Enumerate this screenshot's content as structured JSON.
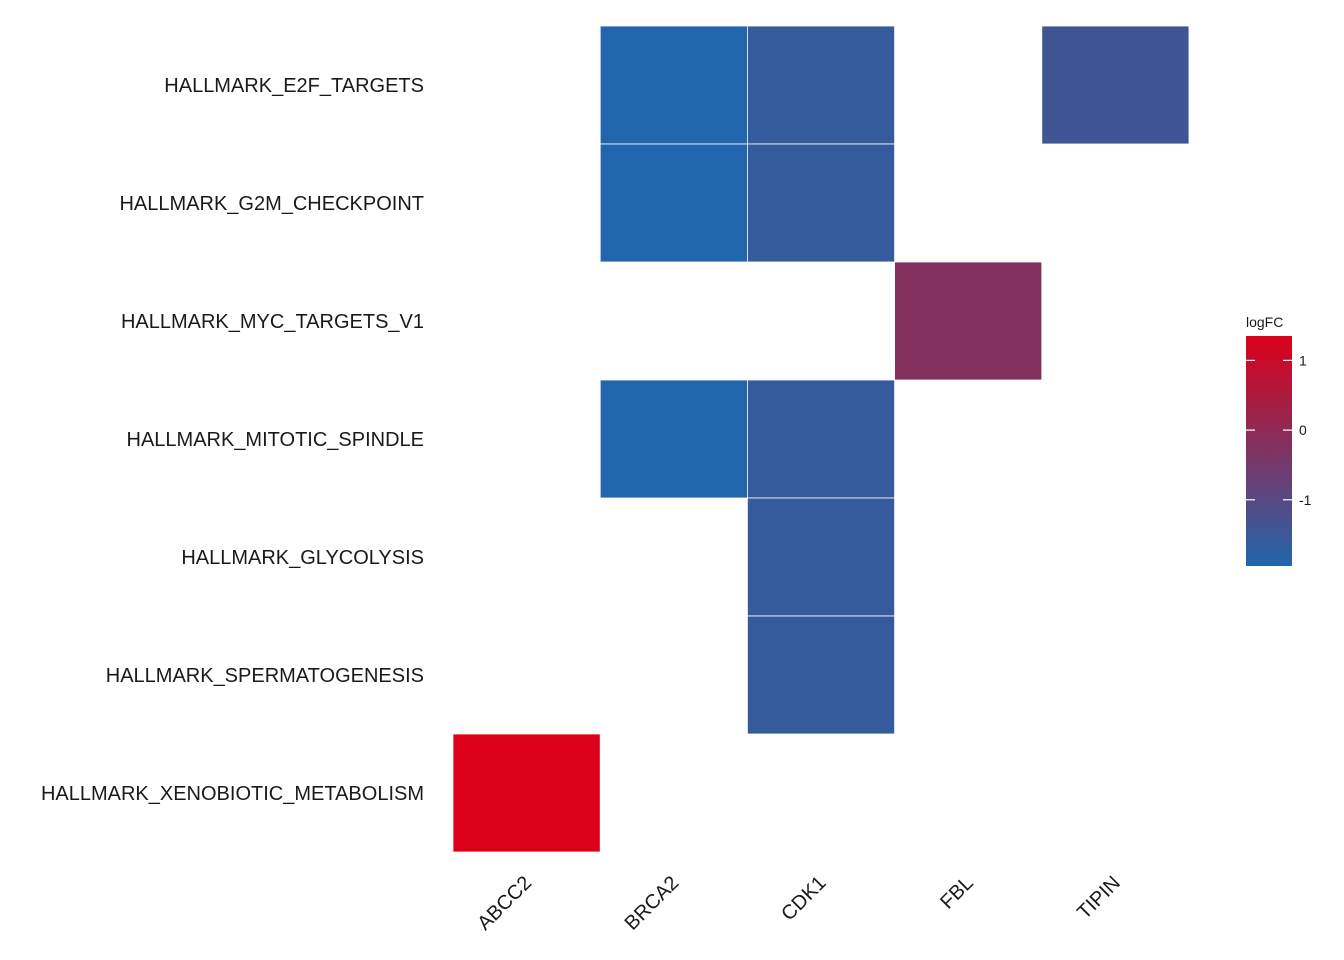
{
  "chart_data": {
    "type": "heatmap",
    "title": "",
    "xlabel": "",
    "ylabel": "",
    "x": [
      "ABCC2",
      "BRCA2",
      "CDK1",
      "FBL",
      "TIPIN"
    ],
    "y": [
      "HALLMARK_E2F_TARGETS",
      "HALLMARK_G2M_CHECKPOINT",
      "HALLMARK_MYC_TARGETS_V1",
      "HALLMARK_MITOTIC_SPINDLE",
      "HALLMARK_GLYCOLYSIS",
      "HALLMARK_SPERMATOGENESIS",
      "HALLMARK_XENOBIOTIC_METABOLISM"
    ],
    "cells": [
      {
        "y": "HALLMARK_E2F_TARGETS",
        "x": "BRCA2",
        "value": -1.95
      },
      {
        "y": "HALLMARK_E2F_TARGETS",
        "x": "CDK1",
        "value": -1.6
      },
      {
        "y": "HALLMARK_E2F_TARGETS",
        "x": "TIPIN",
        "value": -1.4
      },
      {
        "y": "HALLMARK_G2M_CHECKPOINT",
        "x": "BRCA2",
        "value": -1.95
      },
      {
        "y": "HALLMARK_G2M_CHECKPOINT",
        "x": "CDK1",
        "value": -1.6
      },
      {
        "y": "HALLMARK_MYC_TARGETS_V1",
        "x": "FBL",
        "value": -0.2
      },
      {
        "y": "HALLMARK_MITOTIC_SPINDLE",
        "x": "BRCA2",
        "value": -1.95
      },
      {
        "y": "HALLMARK_MITOTIC_SPINDLE",
        "x": "CDK1",
        "value": -1.6
      },
      {
        "y": "HALLMARK_GLYCOLYSIS",
        "x": "CDK1",
        "value": -1.6
      },
      {
        "y": "HALLMARK_SPERMATOGENESIS",
        "x": "CDK1",
        "value": -1.6
      },
      {
        "y": "HALLMARK_XENOBIOTIC_METABOLISM",
        "x": "ABCC2",
        "value": 1.35
      }
    ],
    "legend": {
      "title": "logFC",
      "placement": "right",
      "range": [
        -1.95,
        1.35
      ],
      "ticks": [
        1,
        0,
        -1
      ],
      "tick_labels": [
        "1",
        "0",
        "-1"
      ],
      "low_color": "#2166AC",
      "high_color": "#DC0018"
    },
    "grid": false
  }
}
